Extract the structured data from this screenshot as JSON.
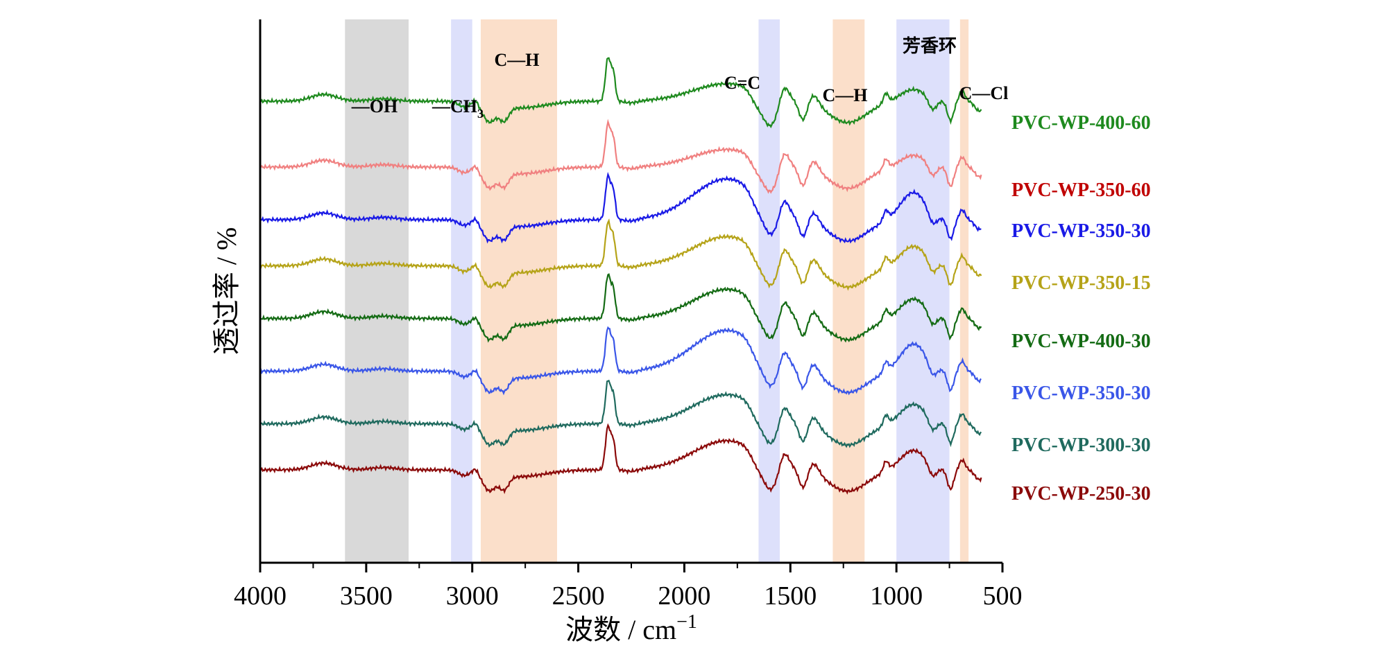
{
  "chart_data": {
    "type": "line",
    "title": "",
    "xlabel": "波数 / cm",
    "xlabel_superscript": "−1",
    "ylabel": "透过率 / %",
    "xlim": [
      4000,
      500
    ],
    "x_ticks": [
      "4000",
      "3500",
      "3000",
      "2500",
      "2000",
      "1500",
      "1000",
      "500"
    ],
    "x_tick_values": [
      4000,
      3500,
      3000,
      2500,
      2000,
      1500,
      1000,
      500
    ],
    "grid": false,
    "legend": "labels at right end of each curve",
    "bands": [
      {
        "range": [
          3600,
          3300
        ],
        "color": "#d9d9d9",
        "label": "—OH"
      },
      {
        "range": [
          3100,
          3000
        ],
        "color": "#dde0fb",
        "label": "—CH",
        "label_sub": "3"
      },
      {
        "range": [
          2960,
          2600
        ],
        "color": "#fbdfca",
        "label": "C—H"
      },
      {
        "range": [
          1650,
          1550
        ],
        "color": "#dde0fb",
        "label": "C=C"
      },
      {
        "range": [
          1300,
          1150
        ],
        "color": "#fbdfca",
        "label": "C—H"
      },
      {
        "range": [
          1000,
          750
        ],
        "color": "#dde0fb",
        "label": "芳香环"
      },
      {
        "range": [
          700,
          660
        ],
        "color": "#fbdfca",
        "label": "C—Cl"
      }
    ],
    "series": [
      {
        "name": "PVC-WP-400-60",
        "color": "#1e8a1e",
        "label_color": "#1e8a1e",
        "baseline": 6.8
      },
      {
        "name": "PVC-WP-350-60",
        "color": "#f08080",
        "label_color": "#c00000",
        "baseline": 5.8
      },
      {
        "name": "PVC-WP-350-30",
        "color": "#1a1ae6",
        "label_color": "#1a1ae6",
        "baseline": 5.0
      },
      {
        "name": "PVC-WP-350-15",
        "color": "#b5a318",
        "label_color": "#b5a318",
        "baseline": 4.3
      },
      {
        "name": "PVC-WP-400-30",
        "color": "#146b14",
        "label_color": "#146b14",
        "baseline": 3.5
      },
      {
        "name": "PVC-WP-350-30",
        "color": "#3a56e8",
        "label_color": "#3a56e8",
        "baseline": 2.7
      },
      {
        "name": "PVC-WP-300-30",
        "color": "#1f6a5e",
        "label_color": "#1f6a5e",
        "baseline": 1.9
      },
      {
        "name": "PVC-WP-250-30",
        "color": "#8b0a0a",
        "label_color": "#8b0a0a",
        "baseline": 1.2
      }
    ]
  }
}
